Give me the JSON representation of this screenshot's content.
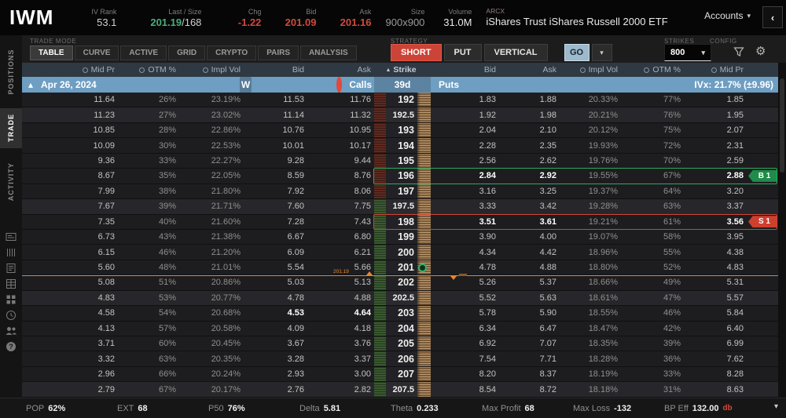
{
  "icons": {
    "chevron_down": "▾",
    "sort_up": "▲",
    "expander": "▴",
    "collapse_left": "‹",
    "gear": "⚙"
  },
  "header": {
    "symbol": "IWM",
    "iv_rank": {
      "label": "IV Rank",
      "value": "53.1"
    },
    "last_size": {
      "label": "Last / Size",
      "last": "201.19",
      "size": "/168"
    },
    "chg": {
      "label": "Chg",
      "value": "-1.22"
    },
    "bid": {
      "label": "Bid",
      "value": "201.09"
    },
    "ask": {
      "label": "Ask",
      "value": "201.16"
    },
    "size": {
      "label": "Size",
      "value": "900x900"
    },
    "volume": {
      "label": "Volume",
      "value": "31.0M"
    },
    "exchange": "ARCX",
    "name": "iShares Trust iShares Russell 2000 ETF",
    "accounts_label": "Accounts"
  },
  "sidebar": {
    "tabs": [
      "POSITIONS",
      "TRADE",
      "ACTIVITY"
    ],
    "active_index": 1,
    "icons": [
      "card-icon",
      "columns-icon",
      "journal-icon",
      "chart-grid-icon",
      "apps-icon",
      "history-icon",
      "users-icon",
      "help-icon"
    ]
  },
  "trade_mode": {
    "label": "TRADE MODE",
    "tabs": [
      "TABLE",
      "CURVE",
      "ACTIVE",
      "GRID",
      "CRYPTO",
      "PAIRS",
      "ANALYSIS"
    ],
    "active_index": 0
  },
  "strategy": {
    "label": "STRATEGY",
    "buttons": [
      {
        "label": "SHORT",
        "accent": true
      },
      {
        "label": "PUT",
        "accent": false
      },
      {
        "label": "VERTICAL",
        "accent": false
      }
    ],
    "go_label": "GO"
  },
  "strikes": {
    "label": "STRIKES",
    "value": "800"
  },
  "config": {
    "label": "CONFIG"
  },
  "table": {
    "headers": {
      "mid": "Mid Pr",
      "otm": "OTM %",
      "iv": "Impl Vol",
      "bid": "Bid",
      "ask": "Ask",
      "strike": "Strike"
    },
    "date_row": {
      "date": "Apr 26, 2024",
      "weekly_badge": "W",
      "calls_label": "Calls",
      "dte": "39d",
      "puts_label": "Puts",
      "ivx": "IVx: 21.7% (±9.96)"
    },
    "price_line": {
      "label": "201.19"
    },
    "rows": [
      {
        "strike": "192",
        "half": false,
        "zone": "red",
        "calls": [
          "11.64",
          "26%",
          "23.19%",
          "11.53",
          "11.76"
        ],
        "puts": [
          "1.83",
          "1.88",
          "20.33%",
          "77%",
          "1.85"
        ]
      },
      {
        "strike": "192.5",
        "half": true,
        "zone": "red",
        "calls": [
          "11.23",
          "27%",
          "23.02%",
          "11.14",
          "11.32"
        ],
        "puts": [
          "1.92",
          "1.98",
          "20.21%",
          "76%",
          "1.95"
        ]
      },
      {
        "strike": "193",
        "half": false,
        "zone": "red",
        "calls": [
          "10.85",
          "28%",
          "22.86%",
          "10.76",
          "10.95"
        ],
        "puts": [
          "2.04",
          "2.10",
          "20.12%",
          "75%",
          "2.07"
        ]
      },
      {
        "strike": "194",
        "half": false,
        "zone": "red",
        "calls": [
          "10.09",
          "30%",
          "22.53%",
          "10.01",
          "10.17"
        ],
        "puts": [
          "2.28",
          "2.35",
          "19.93%",
          "72%",
          "2.31"
        ]
      },
      {
        "strike": "195",
        "half": false,
        "zone": "red",
        "calls": [
          "9.36",
          "33%",
          "22.27%",
          "9.28",
          "9.44"
        ],
        "puts": [
          "2.56",
          "2.62",
          "19.76%",
          "70%",
          "2.59"
        ]
      },
      {
        "strike": "196",
        "half": false,
        "zone": "red",
        "calls": [
          "8.67",
          "35%",
          "22.05%",
          "8.59",
          "8.76"
        ],
        "puts": [
          "2.84",
          "2.92",
          "19.55%",
          "67%",
          "2.88"
        ],
        "badge": {
          "label": "B 1",
          "side": "buy"
        }
      },
      {
        "strike": "197",
        "half": false,
        "zone": "red",
        "calls": [
          "7.99",
          "38%",
          "21.80%",
          "7.92",
          "8.06"
        ],
        "puts": [
          "3.16",
          "3.25",
          "19.37%",
          "64%",
          "3.20"
        ]
      },
      {
        "strike": "197.5",
        "half": true,
        "zone": "green",
        "calls": [
          "7.67",
          "39%",
          "21.71%",
          "7.60",
          "7.75"
        ],
        "puts": [
          "3.33",
          "3.42",
          "19.28%",
          "63%",
          "3.37"
        ]
      },
      {
        "strike": "198",
        "half": false,
        "zone": "green",
        "calls": [
          "7.35",
          "40%",
          "21.60%",
          "7.28",
          "7.43"
        ],
        "puts": [
          "3.51",
          "3.61",
          "19.21%",
          "61%",
          "3.56"
        ],
        "badge": {
          "label": "S 1",
          "side": "sell"
        }
      },
      {
        "strike": "199",
        "half": false,
        "zone": "green",
        "calls": [
          "6.73",
          "43%",
          "21.38%",
          "6.67",
          "6.80"
        ],
        "puts": [
          "3.90",
          "4.00",
          "19.07%",
          "58%",
          "3.95"
        ]
      },
      {
        "strike": "200",
        "half": false,
        "zone": "green",
        "calls": [
          "6.15",
          "46%",
          "21.20%",
          "6.09",
          "6.21"
        ],
        "puts": [
          "4.34",
          "4.42",
          "18.96%",
          "55%",
          "4.38"
        ]
      },
      {
        "strike": "201",
        "half": false,
        "zone": "green",
        "calls": [
          "5.60",
          "48%",
          "21.01%",
          "5.54",
          "5.66"
        ],
        "puts": [
          "4.78",
          "4.88",
          "18.80%",
          "52%",
          "4.83"
        ],
        "marker": true
      },
      {
        "strike": "202",
        "half": false,
        "zone": "green",
        "calls": [
          "5.08",
          "51%",
          "20.86%",
          "5.03",
          "5.13"
        ],
        "puts": [
          "5.26",
          "5.37",
          "18.66%",
          "49%",
          "5.31"
        ]
      },
      {
        "strike": "202.5",
        "half": true,
        "zone": "green",
        "calls": [
          "4.83",
          "53%",
          "20.77%",
          "4.78",
          "4.88"
        ],
        "puts": [
          "5.52",
          "5.63",
          "18.61%",
          "47%",
          "5.57"
        ]
      },
      {
        "strike": "203",
        "half": false,
        "zone": "green",
        "calls": [
          "4.58",
          "54%",
          "20.68%",
          "4.53",
          "4.64"
        ],
        "puts": [
          "5.78",
          "5.90",
          "18.55%",
          "46%",
          "5.84"
        ],
        "flash": true
      },
      {
        "strike": "204",
        "half": false,
        "zone": "green",
        "calls": [
          "4.13",
          "57%",
          "20.58%",
          "4.09",
          "4.18"
        ],
        "puts": [
          "6.34",
          "6.47",
          "18.47%",
          "42%",
          "6.40"
        ]
      },
      {
        "strike": "205",
        "half": false,
        "zone": "green",
        "calls": [
          "3.71",
          "60%",
          "20.45%",
          "3.67",
          "3.76"
        ],
        "puts": [
          "6.92",
          "7.07",
          "18.35%",
          "39%",
          "6.99"
        ]
      },
      {
        "strike": "206",
        "half": false,
        "zone": "green",
        "calls": [
          "3.32",
          "63%",
          "20.35%",
          "3.28",
          "3.37"
        ],
        "puts": [
          "7.54",
          "7.71",
          "18.28%",
          "36%",
          "7.62"
        ]
      },
      {
        "strike": "207",
        "half": false,
        "zone": "green",
        "calls": [
          "2.96",
          "66%",
          "20.24%",
          "2.93",
          "3.00"
        ],
        "puts": [
          "8.20",
          "8.37",
          "18.19%",
          "33%",
          "8.28"
        ]
      },
      {
        "strike": "207.5",
        "half": true,
        "zone": "green",
        "calls": [
          "2.79",
          "67%",
          "20.17%",
          "2.76",
          "2.82"
        ],
        "puts": [
          "8.54",
          "8.72",
          "18.18%",
          "31%",
          "8.63"
        ]
      }
    ]
  },
  "footer": {
    "items": [
      {
        "label": "POP",
        "value": "62%"
      },
      {
        "label": "EXT",
        "value": "68"
      },
      {
        "label": "P50",
        "value": "76%"
      },
      {
        "label": "Delta",
        "value": "5.81"
      },
      {
        "label": "Theta",
        "value": "0.233"
      },
      {
        "label": "Max Profit",
        "value": "68"
      },
      {
        "label": "Max Loss",
        "value": "-132"
      },
      {
        "label": "BP Eff",
        "value": "132.00",
        "suffix": "db"
      }
    ]
  }
}
